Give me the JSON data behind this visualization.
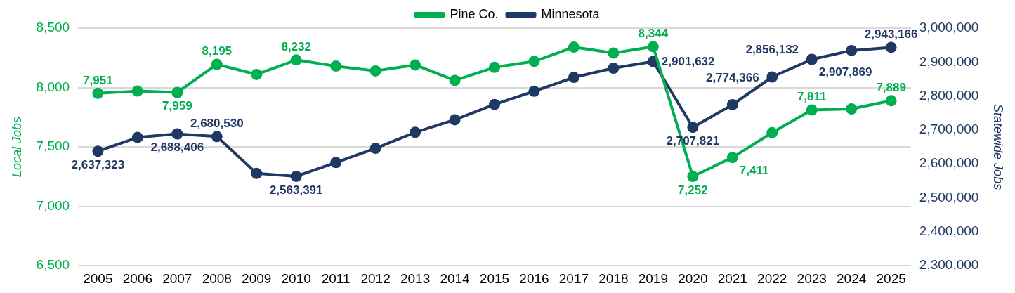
{
  "chart_data": {
    "type": "line",
    "xlabel": null,
    "ylabel": "Local Jobs",
    "y2label": "Statewide Jobs",
    "categories": [
      "2005",
      "2006",
      "2007",
      "2008",
      "2009",
      "2010",
      "2011",
      "2012",
      "2013",
      "2014",
      "2015",
      "2016",
      "2017",
      "2018",
      "2019",
      "2020",
      "2021",
      "2022",
      "2023",
      "2024",
      "2025"
    ],
    "series": [
      {
        "name": "Pine Co.",
        "color": "#00b050",
        "values": [
          7951,
          7970,
          7959,
          8195,
          8110,
          8232,
          8180,
          8140,
          8190,
          8060,
          8170,
          8220,
          8340,
          8290,
          8344,
          7252,
          7411,
          7620,
          7811,
          7820,
          7889
        ],
        "value_labels": [
          "7,951",
          null,
          "7,959",
          "8,195",
          null,
          "8,232",
          null,
          null,
          null,
          null,
          null,
          null,
          null,
          null,
          "8,344",
          "7,252",
          "7,411",
          null,
          "7,811",
          null,
          "7,889"
        ]
      },
      {
        "name": "Minnesota",
        "color": "#203864",
        "axis": "y2",
        "values": [
          2637323,
          2678000,
          2688406,
          2680530,
          2572000,
          2563391,
          2604000,
          2646000,
          2693000,
          2730000,
          2775000,
          2814000,
          2855000,
          2882000,
          2901632,
          2707821,
          2774366,
          2856132,
          2907869,
          2934000,
          2943166
        ],
        "value_labels": [
          "2,637,323",
          null,
          "2,688,406",
          "2,680,530",
          null,
          "2,563,391",
          null,
          null,
          null,
          null,
          null,
          null,
          null,
          null,
          "2,901,632",
          "2,707,821",
          "2,774,366",
          "2,856,132",
          "2,907,869",
          null,
          "2,943,166"
        ]
      }
    ],
    "ylim": [
      6500,
      8500
    ],
    "yticks": [
      {
        "value": 6500,
        "label": "6,500"
      },
      {
        "value": 7000,
        "label": "7,000"
      },
      {
        "value": 7500,
        "label": "7,500"
      },
      {
        "value": 8000,
        "label": "8,000"
      },
      {
        "value": 8500,
        "label": "8,500"
      }
    ],
    "y2lim": [
      2300000,
      3000000
    ],
    "y2ticks": [
      {
        "value": 2300000,
        "label": "2,300,000"
      },
      {
        "value": 2400000,
        "label": "2,400,000"
      },
      {
        "value": 2500000,
        "label": "2,500,000"
      },
      {
        "value": 2600000,
        "label": "2,600,000"
      },
      {
        "value": 2700000,
        "label": "2,700,000"
      },
      {
        "value": 2800000,
        "label": "2,800,000"
      },
      {
        "value": 2900000,
        "label": "2,900,000"
      },
      {
        "value": 3000000,
        "label": "3,000,000"
      }
    ],
    "grid": "y",
    "legend": "top",
    "marker": "circle",
    "line_style": "solid"
  }
}
